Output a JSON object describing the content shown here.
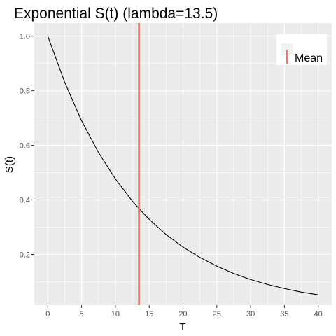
{
  "chart_data": {
    "type": "line",
    "title": "Exponential S(t) (lambda=13.5)",
    "xlabel": "T",
    "ylabel": "S(t)",
    "xlim": [
      -2,
      42
    ],
    "ylim": [
      0.014,
      1.048
    ],
    "x_ticks": [
      0,
      5,
      10,
      15,
      20,
      25,
      30,
      35,
      40
    ],
    "y_ticks": [
      0.2,
      0.4,
      0.6,
      0.8,
      1.0
    ],
    "x_tick_labels": [
      "0",
      "5",
      "10",
      "15",
      "20",
      "25",
      "30",
      "35",
      "40"
    ],
    "y_tick_labels": [
      "0.2",
      "0.4",
      "0.6",
      "0.8",
      "1.0"
    ],
    "grid": true,
    "legend_position": "top-right",
    "series": [
      {
        "color": "#000000",
        "x": [
          0,
          2.5,
          5,
          7.5,
          10,
          12.5,
          13.5,
          15,
          17.5,
          20,
          22.5,
          25,
          27.5,
          30,
          32.5,
          35,
          37.5,
          40
        ],
        "y": [
          1.0,
          0.831,
          0.69,
          0.574,
          0.477,
          0.396,
          0.368,
          0.329,
          0.273,
          0.227,
          0.189,
          0.157,
          0.13,
          0.108,
          0.09,
          0.075,
          0.062,
          0.052
        ]
      }
    ],
    "reference_lines": [
      {
        "name": "Mean",
        "orientation": "vertical",
        "x": 13.5,
        "color": "#F8766D"
      }
    ]
  },
  "colors": {
    "panel_background": "#EBEBEB",
    "grid_major": "#FFFFFF",
    "tick_label": "#4D4D4D",
    "mean_line": "#F8766D"
  }
}
